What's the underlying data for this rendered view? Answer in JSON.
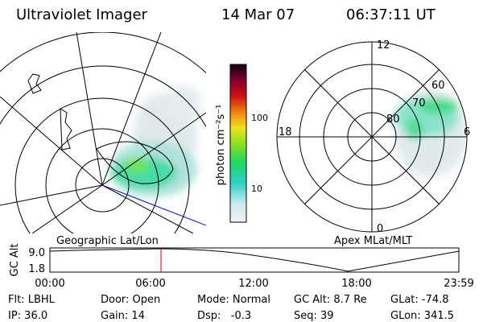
{
  "header": {
    "title": "Ultraviolet Imager",
    "date": "14 Mar 07",
    "time": "06:37:11 UT"
  },
  "left_panel": {
    "label": "Geographic Lat/Lon"
  },
  "colorbar": {
    "unit": "photon cm⁻²s⁻¹",
    "ticks": [
      "100",
      "10"
    ]
  },
  "right_panel": {
    "label": "Apex MLat/MLT",
    "mlt_labels": [
      "12",
      "18",
      "6",
      "0"
    ],
    "lat_labels": [
      "60",
      "70",
      "80"
    ]
  },
  "orbit_plot": {
    "ylabel": "GC Alt",
    "yticks": [
      "9.0",
      "1.8"
    ],
    "xticks": [
      "00:00",
      "06:00",
      "12:00",
      "18:00",
      "23:59"
    ]
  },
  "info": {
    "rows": [
      [
        "Flt: LBHL",
        "Door: Open",
        "Mode: Normal",
        "GC Alt: 8.7 Re",
        "GLat: -74.8"
      ],
      [
        "IP: 36.0",
        "Gain: 14",
        "Dsp:   -0.3",
        "Seq: 39",
        "GLon: 341.5"
      ]
    ]
  }
}
